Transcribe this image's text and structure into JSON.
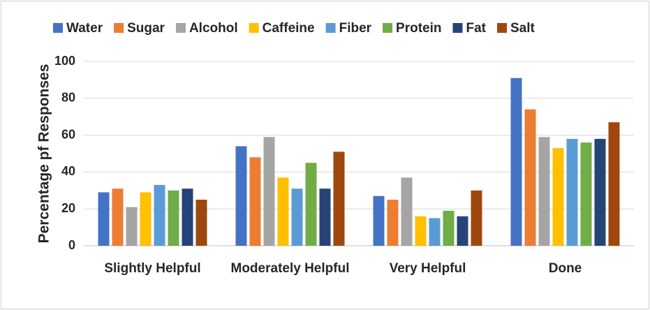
{
  "chart_data": {
    "type": "bar",
    "categories": [
      "Slightly Helpful",
      "Moderately Helpful",
      "Very Helpful",
      "Done"
    ],
    "series": [
      {
        "name": "Water",
        "color": "#4472c4",
        "values": [
          29,
          54,
          27,
          91
        ]
      },
      {
        "name": "Sugar",
        "color": "#ed7d31",
        "values": [
          31,
          48,
          25,
          74
        ]
      },
      {
        "name": "Alcohol",
        "color": "#a5a5a5",
        "values": [
          21,
          59,
          37,
          59
        ]
      },
      {
        "name": "Caffeine",
        "color": "#ffc000",
        "values": [
          29,
          37,
          16,
          53
        ]
      },
      {
        "name": "Fiber",
        "color": "#5b9bd5",
        "values": [
          33,
          31,
          15,
          58
        ]
      },
      {
        "name": "Protein",
        "color": "#70ad47",
        "values": [
          30,
          45,
          19,
          56
        ]
      },
      {
        "name": "Fat",
        "color": "#264478",
        "values": [
          31,
          31,
          16,
          58
        ]
      },
      {
        "name": "Salt",
        "color": "#9e480e",
        "values": [
          25,
          51,
          30,
          67
        ]
      }
    ],
    "y_label": "Percentage pf Responses",
    "ylim": [
      0,
      100
    ],
    "yticks": [
      0,
      20,
      40,
      60,
      80,
      100
    ],
    "grid": true,
    "legend": "top"
  }
}
